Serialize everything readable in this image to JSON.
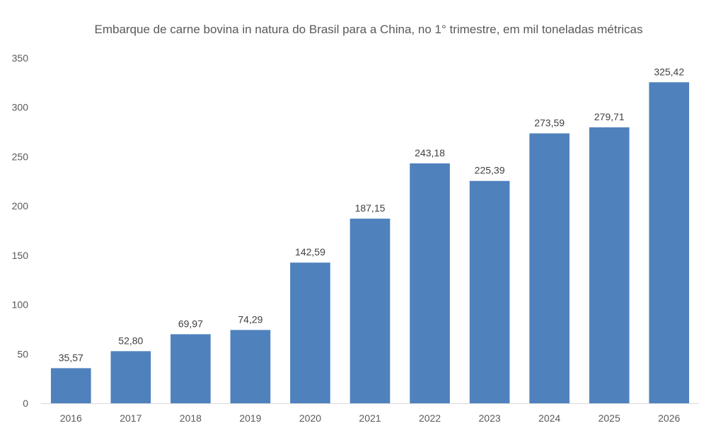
{
  "chart_data": {
    "type": "bar",
    "title": "Embarque de carne bovina in natura do Brasil para a China, no 1° trimestre, em mil toneladas métricas",
    "xlabel": "",
    "ylabel": "",
    "categories": [
      "2016",
      "2017",
      "2018",
      "2019",
      "2020",
      "2021",
      "2022",
      "2023",
      "2024",
      "2025",
      "2026"
    ],
    "values": [
      35.57,
      52.8,
      69.97,
      74.29,
      142.59,
      187.15,
      243.18,
      225.39,
      273.59,
      279.71,
      325.42
    ],
    "value_labels": [
      "35,57",
      "52,80",
      "69,97",
      "74,29",
      "142,59",
      "187,15",
      "243,18",
      "225,39",
      "273,59",
      "279,71",
      "325,42"
    ],
    "ylim": [
      0,
      350
    ],
    "yticks": [
      "0",
      "50",
      "100",
      "150",
      "200",
      "250",
      "300",
      "350"
    ],
    "grid": false,
    "legend": "none",
    "bar_color": "#4f81bd",
    "axis_color": "#d9d9d9"
  }
}
